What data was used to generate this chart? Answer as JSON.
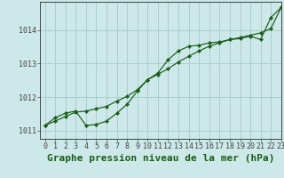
{
  "title": "Graphe pression niveau de la mer (hPa)",
  "xlim": [
    -0.5,
    23
  ],
  "ylim": [
    1010.75,
    1014.85
  ],
  "yticks": [
    1011,
    1012,
    1013,
    1014
  ],
  "xticks": [
    0,
    1,
    2,
    3,
    4,
    5,
    6,
    7,
    8,
    9,
    10,
    11,
    12,
    13,
    14,
    15,
    16,
    17,
    18,
    19,
    20,
    21,
    22,
    23
  ],
  "background_color": "#cce8e8",
  "grid_color": "#aacece",
  "line_color": "#1a5e1a",
  "marker_color": "#1a5e1a",
  "curve1_y": [
    1011.15,
    1011.38,
    1011.52,
    1011.58,
    1011.15,
    1011.18,
    1011.28,
    1011.52,
    1011.78,
    1012.18,
    1012.52,
    1012.72,
    1013.12,
    1013.38,
    1013.52,
    1013.55,
    1013.62,
    1013.65,
    1013.72,
    1013.75,
    1013.82,
    1013.72,
    1014.38,
    1014.68
  ],
  "curve2_y": [
    1011.15,
    1011.28,
    1011.42,
    1011.55,
    1011.58,
    1011.65,
    1011.72,
    1011.88,
    1012.02,
    1012.22,
    1012.52,
    1012.68,
    1012.85,
    1013.05,
    1013.22,
    1013.38,
    1013.52,
    1013.62,
    1013.72,
    1013.78,
    1013.85,
    1013.92,
    1014.05,
    1014.68
  ],
  "title_fontsize": 8,
  "tick_fontsize": 6,
  "axis_color": "#444444",
  "title_color": "#1a5e1a"
}
